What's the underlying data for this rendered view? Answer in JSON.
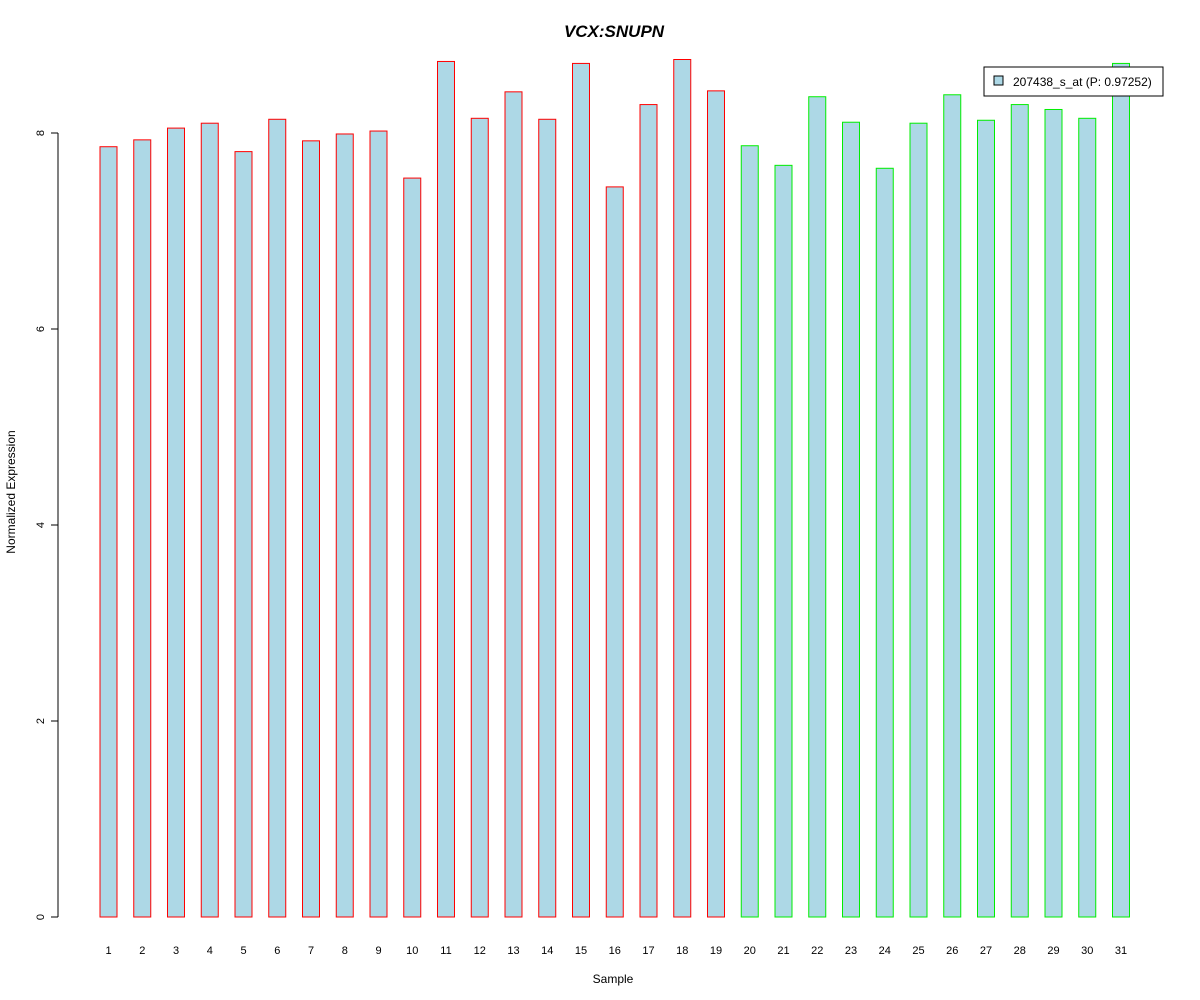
{
  "chart_data": {
    "type": "bar",
    "title": "VCX:SNUPN",
    "xlabel": "Sample",
    "ylabel": "Normalized Expression",
    "categories": [
      "1",
      "2",
      "3",
      "4",
      "5",
      "6",
      "7",
      "8",
      "9",
      "10",
      "11",
      "12",
      "13",
      "14",
      "15",
      "16",
      "17",
      "18",
      "19",
      "20",
      "21",
      "22",
      "23",
      "24",
      "25",
      "26",
      "27",
      "28",
      "29",
      "30",
      "31"
    ],
    "series": [
      {
        "name": "207438_s_at (P: 0.97252)",
        "values": [
          7.86,
          7.93,
          8.05,
          8.1,
          7.81,
          8.14,
          7.92,
          7.99,
          8.02,
          7.54,
          8.73,
          8.15,
          8.42,
          8.14,
          8.71,
          7.45,
          8.29,
          8.75,
          8.43,
          7.87,
          7.67,
          8.37,
          8.11,
          7.64,
          8.1,
          8.39,
          8.13,
          8.29,
          8.24,
          8.15,
          8.71
        ]
      }
    ],
    "group_border_colors": [
      "#ff0000",
      "#ff0000",
      "#ff0000",
      "#ff0000",
      "#ff0000",
      "#ff0000",
      "#ff0000",
      "#ff0000",
      "#ff0000",
      "#ff0000",
      "#ff0000",
      "#ff0000",
      "#ff0000",
      "#ff0000",
      "#ff0000",
      "#ff0000",
      "#ff0000",
      "#ff0000",
      "#ff0000",
      "#00ee00",
      "#00ee00",
      "#00ee00",
      "#00ee00",
      "#00ee00",
      "#00ee00",
      "#00ee00",
      "#00ee00",
      "#00ee00",
      "#00ee00",
      "#00ee00",
      "#00ee00"
    ],
    "bar_fill_color": "#add8e6",
    "title_color": "#0000cd",
    "yticks": [
      0,
      2,
      4,
      6,
      8
    ],
    "ylim": [
      0,
      8.75
    ],
    "legend_position": "top-right",
    "grid": false
  }
}
